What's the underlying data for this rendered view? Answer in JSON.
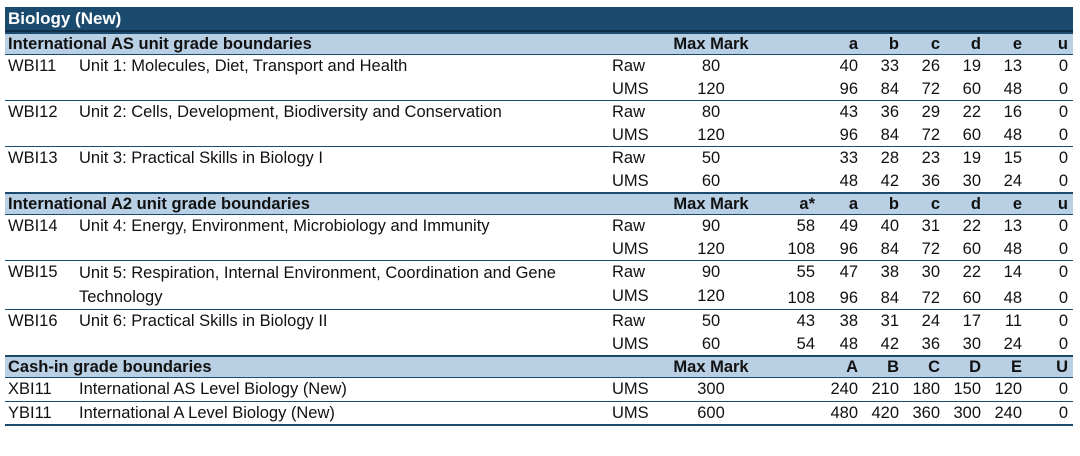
{
  "title": "Biology (New)",
  "sections": [
    {
      "header": "International AS unit grade boundaries",
      "max_label": "Max Mark",
      "grade_labels": [
        "",
        "a",
        "b",
        "c",
        "d",
        "e",
        "u"
      ],
      "units": [
        {
          "code": "WBI11",
          "title": "Unit 1: Molecules, Diet, Transport and Health",
          "rows": [
            {
              "type": "Raw",
              "max": "80",
              "vals": [
                "",
                "40",
                "33",
                "26",
                "19",
                "13",
                "0"
              ]
            },
            {
              "type": "UMS",
              "max": "120",
              "vals": [
                "",
                "96",
                "84",
                "72",
                "60",
                "48",
                "0"
              ]
            }
          ]
        },
        {
          "code": "WBI12",
          "title": "Unit 2: Cells, Development, Biodiversity and Conservation",
          "rows": [
            {
              "type": "Raw",
              "max": "80",
              "vals": [
                "",
                "43",
                "36",
                "29",
                "22",
                "16",
                "0"
              ]
            },
            {
              "type": "UMS",
              "max": "120",
              "vals": [
                "",
                "96",
                "84",
                "72",
                "60",
                "48",
                "0"
              ]
            }
          ]
        },
        {
          "code": "WBI13",
          "title": "Unit 3: Practical Skills in Biology I",
          "rows": [
            {
              "type": "Raw",
              "max": "50",
              "vals": [
                "",
                "33",
                "28",
                "23",
                "19",
                "15",
                "0"
              ]
            },
            {
              "type": "UMS",
              "max": "60",
              "vals": [
                "",
                "48",
                "42",
                "36",
                "30",
                "24",
                "0"
              ]
            }
          ]
        }
      ]
    },
    {
      "header": "International A2 unit grade boundaries",
      "max_label": "Max Mark",
      "grade_labels": [
        "a*",
        "a",
        "b",
        "c",
        "d",
        "e",
        "u"
      ],
      "units": [
        {
          "code": "WBI14",
          "title": "Unit 4: Energy, Environment, Microbiology and Immunity",
          "rows": [
            {
              "type": "Raw",
              "max": "90",
              "vals": [
                "58",
                "49",
                "40",
                "31",
                "22",
                "13",
                "0"
              ]
            },
            {
              "type": "UMS",
              "max": "120",
              "vals": [
                "108",
                "96",
                "84",
                "72",
                "60",
                "48",
                "0"
              ]
            }
          ]
        },
        {
          "code": "WBI15",
          "title": "Unit 5: Respiration, Internal Environment, Coordination and Gene Technology",
          "rows": [
            {
              "type": "Raw",
              "max": "90",
              "vals": [
                "55",
                "47",
                "38",
                "30",
                "22",
                "14",
                "0"
              ]
            },
            {
              "type": "UMS",
              "max": "120",
              "vals": [
                "108",
                "96",
                "84",
                "72",
                "60",
                "48",
                "0"
              ]
            }
          ]
        },
        {
          "code": "WBI16",
          "title": "Unit 6: Practical Skills in Biology II",
          "rows": [
            {
              "type": "Raw",
              "max": "50",
              "vals": [
                "43",
                "38",
                "31",
                "24",
                "17",
                "11",
                "0"
              ]
            },
            {
              "type": "UMS",
              "max": "60",
              "vals": [
                "54",
                "48",
                "42",
                "36",
                "30",
                "24",
                "0"
              ]
            }
          ]
        }
      ]
    },
    {
      "header": "Cash-in grade boundaries",
      "max_label": "Max Mark",
      "grade_labels": [
        "",
        "A",
        "B",
        "C",
        "D",
        "E",
        "U"
      ],
      "units": [
        {
          "code": "XBI11",
          "title": "International AS Level Biology (New)",
          "rows": [
            {
              "type": "UMS",
              "max": "300",
              "vals": [
                "",
                "240",
                "210",
                "180",
                "150",
                "120",
                "0"
              ]
            }
          ]
        },
        {
          "code": "YBI11",
          "title": "International A Level Biology (New)",
          "rows": [
            {
              "type": "UMS",
              "max": "600",
              "vals": [
                "",
                "480",
                "420",
                "360",
                "300",
                "240",
                "0"
              ]
            }
          ]
        }
      ]
    }
  ]
}
